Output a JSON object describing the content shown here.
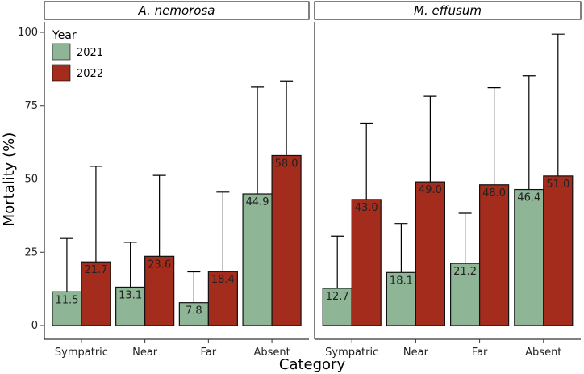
{
  "chart_data": {
    "type": "bar",
    "xlabel": "Category",
    "ylabel": "Mortality (%)",
    "ylim": [
      0,
      100
    ],
    "yticks": [
      0,
      25,
      50,
      75,
      100
    ],
    "grid": false,
    "legend": {
      "title": "Year",
      "placement": "top-left",
      "entries": [
        {
          "label": "2021",
          "color": "#8DB596"
        },
        {
          "label": "2022",
          "color": "#A32C1C"
        }
      ]
    },
    "panels": [
      {
        "title": "A. nemorosa",
        "categories": [
          "Sympatric",
          "Near",
          "Far",
          "Absent"
        ],
        "series": [
          {
            "name": "2021",
            "values": [
              11.5,
              13.1,
              7.8,
              44.9
            ],
            "labels": [
              "11.5",
              "13.1",
              "7.8",
              "44.9"
            ],
            "error_upper": [
              29.7,
              28.4,
              18.3,
              81.3
            ]
          },
          {
            "name": "2022",
            "values": [
              21.7,
              23.6,
              18.4,
              58.0
            ],
            "labels": [
              "21.7",
              "23.6",
              "18.4",
              "58.0"
            ],
            "error_upper": [
              54.3,
              51.2,
              45.5,
              83.4
            ]
          }
        ]
      },
      {
        "title": "M. effusum",
        "categories": [
          "Sympatric",
          "Near",
          "Far",
          "Absent"
        ],
        "series": [
          {
            "name": "2021",
            "values": [
              12.7,
              18.1,
              21.2,
              46.4
            ],
            "labels": [
              "12.7",
              "18.1",
              "21.2",
              "46.4"
            ],
            "error_upper": [
              30.5,
              34.8,
              38.3,
              85.2
            ]
          },
          {
            "name": "2022",
            "values": [
              43.0,
              49.0,
              48.0,
              51.0
            ],
            "labels": [
              "43.0",
              "49.0",
              "48.0",
              "51.0"
            ],
            "error_upper": [
              69.0,
              78.2,
              81.1,
              99.4
            ]
          }
        ]
      }
    ]
  }
}
